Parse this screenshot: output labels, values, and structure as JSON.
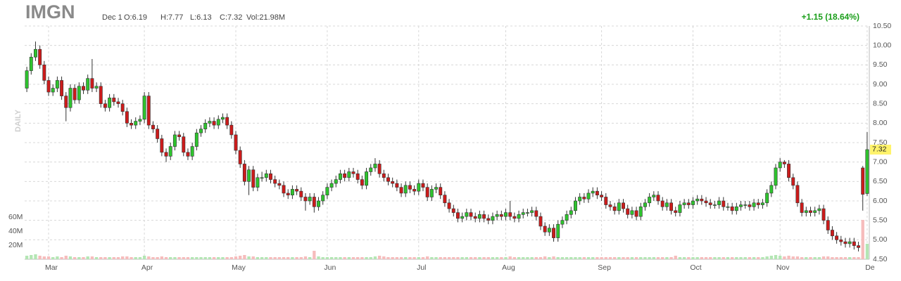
{
  "chart_data": {
    "type": "candlestick",
    "title": "IMGN",
    "date": "Dec 1",
    "open_text": "O:6.19",
    "high_text": "H:7.77",
    "low_text": "L:6.13",
    "close_text": "C:7.32",
    "volume_text": "Vol:21.98M",
    "change_text": "+1.15 (18.64%)",
    "period_label": "DAILY",
    "last_price": {
      "value": 7.32,
      "label": "7.32"
    },
    "up_color": "#2ec42e",
    "down_color": "#cc1b1b",
    "volume_up_color": "#b4e6b4",
    "volume_down_color": "#f6bcbc",
    "grid": true,
    "ylim": [
      4.5,
      10.5
    ],
    "yticks": [
      {
        "value": 4.5,
        "label": "4.50"
      },
      {
        "value": 5,
        "label": "5.00"
      },
      {
        "value": 5.5,
        "label": "5.50"
      },
      {
        "value": 6,
        "label": "6.00"
      },
      {
        "value": 6.5,
        "label": "6.50"
      },
      {
        "value": 7,
        "label": "7.00"
      },
      {
        "value": 7.5,
        "label": "7.50"
      },
      {
        "value": 8,
        "label": "8.00"
      },
      {
        "value": 8.5,
        "label": "8.50"
      },
      {
        "value": 9,
        "label": "9.00"
      },
      {
        "value": 9.5,
        "label": "9.50"
      },
      {
        "value": 10,
        "label": "10.00"
      },
      {
        "value": 10.5,
        "label": "10.50"
      }
    ],
    "y2lim": [
      0,
      332
    ],
    "y2ticks": [
      {
        "value": 20,
        "label": "20M"
      },
      {
        "value": 40,
        "label": "40M"
      },
      {
        "value": 60,
        "label": "60M"
      }
    ],
    "categories": [
      null,
      null,
      null,
      null,
      null,
      "Mar",
      null,
      null,
      null,
      null,
      null,
      null,
      null,
      null,
      null,
      null,
      null,
      null,
      null,
      null,
      null,
      null,
      null,
      null,
      null,
      null,
      null,
      "Apr",
      null,
      null,
      null,
      null,
      null,
      null,
      null,
      null,
      null,
      null,
      null,
      null,
      null,
      null,
      null,
      null,
      null,
      null,
      null,
      null,
      "May",
      null,
      null,
      null,
      null,
      null,
      null,
      null,
      null,
      null,
      null,
      null,
      null,
      null,
      null,
      null,
      null,
      null,
      null,
      null,
      null,
      "Jun",
      null,
      null,
      null,
      null,
      null,
      null,
      null,
      null,
      null,
      null,
      null,
      null,
      null,
      null,
      null,
      null,
      null,
      null,
      null,
      null,
      "Jul",
      null,
      null,
      null,
      null,
      null,
      null,
      null,
      null,
      null,
      null,
      null,
      null,
      null,
      null,
      null,
      null,
      null,
      null,
      null,
      "Aug",
      null,
      null,
      null,
      null,
      null,
      null,
      null,
      null,
      null,
      null,
      null,
      null,
      null,
      null,
      null,
      null,
      null,
      null,
      null,
      null,
      null,
      "Sep",
      null,
      null,
      null,
      null,
      null,
      null,
      null,
      null,
      null,
      null,
      null,
      null,
      null,
      null,
      null,
      null,
      null,
      null,
      null,
      null,
      "Oct",
      null,
      null,
      null,
      null,
      null,
      null,
      null,
      null,
      null,
      null,
      null,
      null,
      null,
      null,
      null,
      null,
      null,
      null,
      null,
      "Nov",
      null,
      null,
      null,
      null,
      null,
      null,
      null,
      null,
      null,
      null,
      null,
      null,
      null,
      null,
      null,
      null,
      null,
      null,
      null,
      "De"
    ],
    "open": [
      8.9,
      9.35,
      9.7,
      9.9,
      9.5,
      9.1,
      8.8,
      8.9,
      9.1,
      8.7,
      8.4,
      8.9,
      8.6,
      8.95,
      8.85,
      9.15,
      8.9,
      8.95,
      8.5,
      8.4,
      8.65,
      8.55,
      8.5,
      8.3,
      8.0,
      7.95,
      8.05,
      8.1,
      8.7,
      7.95,
      7.85,
      7.6,
      7.25,
      7.15,
      7.4,
      7.7,
      7.65,
      7.25,
      7.15,
      7.4,
      7.75,
      7.85,
      8.0,
      8.05,
      7.95,
      8.1,
      8.15,
      7.95,
      7.7,
      7.3,
      6.95,
      6.5,
      6.8,
      6.35,
      6.6,
      6.6,
      6.7,
      6.55,
      6.45,
      6.4,
      6.2,
      6.15,
      6.3,
      6.25,
      6.1,
      6.0,
      6.1,
      5.85,
      6.0,
      6.15,
      6.35,
      6.45,
      6.55,
      6.7,
      6.6,
      6.75,
      6.7,
      6.55,
      6.4,
      6.75,
      6.85,
      6.95,
      6.7,
      6.6,
      6.5,
      6.45,
      6.35,
      6.2,
      6.4,
      6.3,
      6.25,
      6.45,
      6.35,
      6.1,
      6.3,
      6.35,
      6.15,
      5.95,
      5.8,
      5.7,
      5.55,
      5.6,
      5.7,
      5.6,
      5.55,
      5.65,
      5.55,
      5.5,
      5.6,
      5.65,
      5.6,
      5.7,
      5.6,
      5.55,
      5.65,
      5.7,
      5.7,
      5.75,
      5.6,
      5.35,
      5.2,
      5.3,
      5.05,
      5.4,
      5.5,
      5.65,
      5.75,
      6.0,
      6.1,
      6.05,
      6.2,
      6.25,
      6.15,
      6.1,
      5.9,
      5.85,
      5.75,
      5.95,
      5.8,
      5.65,
      5.75,
      5.6,
      5.85,
      5.95,
      6.1,
      6.15,
      6.0,
      5.85,
      5.95,
      5.75,
      5.7,
      5.9,
      5.95,
      5.9,
      6.0,
      6.05,
      6.0,
      5.95,
      5.9,
      5.9,
      6.0,
      5.85,
      5.85,
      5.75,
      5.85,
      5.9,
      5.9,
      5.85,
      5.95,
      5.9,
      5.95,
      6.2,
      6.4,
      6.85,
      7.0,
      6.95,
      6.6,
      6.4,
      5.95,
      5.7,
      5.75,
      5.7,
      5.75,
      5.8,
      5.5,
      5.25,
      5.1,
      5.0,
      4.95,
      4.9,
      4.95,
      4.85,
      6.85,
      6.19
    ],
    "high": [
      9.45,
      9.8,
      10.1,
      10.0,
      9.6,
      9.2,
      9.0,
      9.2,
      9.2,
      8.8,
      9.0,
      9.0,
      9.05,
      9.05,
      9.25,
      9.65,
      9.05,
      9.05,
      8.6,
      8.75,
      8.75,
      8.65,
      8.6,
      8.4,
      8.1,
      8.15,
      8.2,
      8.8,
      8.8,
      8.05,
      7.95,
      7.7,
      7.35,
      7.5,
      7.8,
      7.8,
      7.75,
      7.35,
      7.5,
      7.85,
      7.95,
      8.1,
      8.15,
      8.15,
      8.2,
      8.25,
      8.25,
      8.05,
      7.8,
      7.4,
      7.05,
      6.9,
      6.9,
      6.7,
      6.75,
      6.8,
      6.8,
      6.65,
      6.55,
      6.5,
      6.3,
      6.4,
      6.4,
      6.35,
      6.2,
      6.2,
      6.2,
      6.1,
      6.25,
      6.45,
      6.55,
      6.65,
      6.8,
      6.8,
      6.85,
      6.85,
      6.8,
      6.65,
      6.85,
      6.95,
      7.1,
      7.05,
      6.8,
      6.7,
      6.6,
      6.55,
      6.45,
      6.5,
      6.5,
      6.4,
      6.55,
      6.55,
      6.45,
      6.4,
      6.45,
      6.45,
      6.25,
      6.05,
      5.9,
      5.8,
      5.7,
      5.8,
      5.8,
      5.7,
      5.75,
      5.75,
      5.65,
      5.7,
      5.75,
      5.75,
      5.8,
      6.0,
      5.7,
      5.75,
      5.8,
      5.8,
      5.85,
      5.85,
      5.7,
      5.45,
      5.4,
      5.4,
      5.5,
      5.6,
      5.75,
      5.85,
      6.1,
      6.2,
      6.2,
      6.3,
      6.35,
      6.35,
      6.25,
      6.2,
      6.0,
      5.95,
      6.05,
      6.05,
      5.9,
      5.85,
      5.85,
      5.95,
      6.05,
      6.2,
      6.25,
      6.25,
      6.1,
      6.05,
      6.05,
      5.85,
      6.0,
      6.05,
      6.05,
      6.1,
      6.15,
      6.15,
      6.1,
      6.05,
      6.0,
      6.1,
      6.1,
      5.95,
      5.95,
      5.95,
      6.0,
      6.0,
      6.0,
      6.05,
      6.05,
      6.05,
      6.3,
      6.5,
      6.95,
      7.1,
      7.05,
      7.05,
      6.7,
      6.5,
      6.05,
      5.85,
      5.85,
      5.85,
      5.9,
      5.9,
      5.6,
      5.35,
      5.2,
      5.1,
      5.05,
      5.05,
      5.05,
      4.95,
      6.9,
      7.77
    ],
    "low": [
      8.8,
      9.25,
      9.6,
      9.4,
      9.0,
      8.7,
      8.7,
      8.8,
      8.6,
      8.05,
      8.3,
      8.5,
      8.5,
      8.75,
      8.75,
      8.8,
      8.8,
      8.4,
      8.3,
      8.3,
      8.45,
      8.4,
      8.2,
      7.9,
      7.85,
      7.85,
      7.95,
      8.0,
      7.85,
      7.75,
      7.5,
      7.15,
      7.0,
      7.05,
      7.3,
      7.55,
      7.15,
      7.05,
      7.05,
      7.3,
      7.65,
      7.75,
      7.9,
      7.85,
      7.85,
      8.0,
      7.85,
      7.6,
      7.2,
      6.85,
      6.4,
      6.15,
      6.25,
      6.25,
      6.5,
      6.5,
      6.45,
      6.35,
      6.3,
      6.1,
      6.05,
      6.05,
      6.15,
      6.0,
      5.75,
      5.9,
      5.7,
      5.75,
      5.9,
      6.05,
      6.25,
      6.35,
      6.45,
      6.5,
      6.5,
      6.6,
      6.45,
      6.3,
      6.3,
      6.65,
      6.75,
      6.6,
      6.5,
      6.4,
      6.35,
      6.25,
      6.1,
      6.1,
      6.2,
      6.15,
      6.15,
      6.25,
      6.0,
      6.0,
      6.2,
      6.05,
      5.85,
      5.7,
      5.6,
      5.45,
      5.45,
      5.5,
      5.5,
      5.45,
      5.45,
      5.45,
      5.4,
      5.4,
      5.5,
      5.5,
      5.5,
      5.5,
      5.45,
      5.45,
      5.55,
      5.6,
      5.6,
      5.5,
      5.25,
      5.1,
      5.1,
      4.95,
      4.95,
      5.3,
      5.4,
      5.55,
      5.65,
      5.9,
      5.95,
      5.95,
      6.1,
      6.05,
      6.0,
      5.8,
      5.75,
      5.65,
      5.65,
      5.7,
      5.55,
      5.55,
      5.5,
      5.5,
      5.75,
      5.85,
      6.0,
      5.9,
      5.75,
      5.75,
      5.65,
      5.6,
      5.6,
      5.8,
      5.8,
      5.8,
      5.9,
      5.9,
      5.85,
      5.8,
      5.8,
      5.8,
      5.75,
      5.75,
      5.65,
      5.65,
      5.75,
      5.8,
      5.75,
      5.75,
      5.8,
      5.8,
      5.85,
      6.1,
      6.3,
      6.75,
      6.85,
      6.5,
      6.3,
      5.85,
      5.6,
      5.6,
      5.6,
      5.6,
      5.65,
      5.4,
      5.15,
      5.0,
      4.9,
      4.85,
      4.8,
      4.8,
      4.75,
      4.7,
      5.75,
      6.13
    ],
    "close": [
      9.35,
      9.7,
      9.9,
      9.5,
      9.1,
      8.8,
      8.9,
      9.1,
      8.7,
      8.4,
      8.9,
      8.6,
      8.95,
      8.85,
      9.15,
      8.9,
      8.95,
      8.5,
      8.4,
      8.65,
      8.55,
      8.5,
      8.3,
      8.0,
      7.95,
      8.05,
      8.1,
      8.7,
      7.95,
      7.85,
      7.6,
      7.25,
      7.15,
      7.4,
      7.7,
      7.65,
      7.25,
      7.15,
      7.4,
      7.75,
      7.85,
      8.0,
      8.05,
      7.95,
      8.1,
      8.15,
      7.95,
      7.7,
      7.3,
      6.95,
      6.5,
      6.8,
      6.35,
      6.6,
      6.6,
      6.7,
      6.55,
      6.45,
      6.4,
      6.2,
      6.15,
      6.3,
      6.25,
      6.1,
      6.0,
      6.1,
      5.85,
      6.0,
      6.15,
      6.35,
      6.45,
      6.55,
      6.7,
      6.6,
      6.75,
      6.7,
      6.55,
      6.4,
      6.75,
      6.85,
      6.95,
      6.7,
      6.6,
      6.5,
      6.45,
      6.35,
      6.2,
      6.4,
      6.3,
      6.25,
      6.45,
      6.35,
      6.1,
      6.3,
      6.35,
      6.15,
      5.95,
      5.8,
      5.7,
      5.55,
      5.6,
      5.7,
      5.6,
      5.55,
      5.65,
      5.55,
      5.5,
      5.6,
      5.65,
      5.6,
      5.7,
      5.6,
      5.55,
      5.65,
      5.7,
      5.7,
      5.75,
      5.6,
      5.35,
      5.2,
      5.3,
      5.05,
      5.4,
      5.5,
      5.65,
      5.75,
      6.0,
      6.1,
      6.05,
      6.2,
      6.25,
      6.15,
      6.1,
      5.9,
      5.85,
      5.75,
      5.95,
      5.8,
      5.65,
      5.75,
      5.6,
      5.85,
      5.95,
      6.1,
      6.15,
      6.0,
      5.85,
      5.95,
      5.75,
      5.7,
      5.9,
      5.95,
      5.9,
      6.0,
      6.05,
      6.0,
      5.95,
      5.9,
      5.9,
      6.0,
      5.85,
      5.85,
      5.75,
      5.85,
      5.9,
      5.9,
      5.85,
      5.95,
      5.9,
      5.95,
      6.2,
      6.4,
      6.85,
      7.0,
      6.95,
      6.6,
      6.4,
      5.95,
      5.7,
      5.75,
      5.7,
      5.75,
      5.8,
      5.5,
      5.25,
      5.1,
      5.0,
      4.95,
      4.9,
      4.95,
      4.85,
      4.8,
      6.17,
      7.32
    ],
    "volume": [
      5,
      6,
      7,
      5,
      4,
      4,
      3,
      4,
      3,
      5,
      4,
      3,
      3,
      3,
      4,
      4,
      3,
      3,
      3,
      3,
      3,
      3,
      4,
      4,
      3,
      3,
      3,
      5,
      4,
      3,
      3,
      4,
      3,
      3,
      3,
      3,
      3,
      3,
      3,
      3,
      3,
      3,
      3,
      3,
      3,
      3,
      3,
      3,
      4,
      5,
      6,
      4,
      4,
      3,
      3,
      3,
      3,
      3,
      3,
      3,
      3,
      3,
      3,
      3,
      4,
      3,
      12,
      4,
      3,
      3,
      3,
      3,
      3,
      3,
      3,
      3,
      3,
      3,
      3,
      3,
      4,
      5,
      4,
      3,
      3,
      3,
      3,
      3,
      3,
      3,
      3,
      3,
      4,
      3,
      3,
      3,
      3,
      3,
      3,
      3,
      3,
      3,
      3,
      3,
      3,
      3,
      3,
      3,
      3,
      3,
      3,
      4,
      3,
      3,
      3,
      3,
      3,
      3,
      3,
      4,
      3,
      4,
      3,
      3,
      3,
      3,
      3,
      3,
      3,
      3,
      3,
      3,
      3,
      3,
      3,
      3,
      3,
      3,
      3,
      3,
      3,
      3,
      3,
      3,
      3,
      3,
      3,
      3,
      3,
      5,
      3,
      3,
      3,
      3,
      3,
      3,
      3,
      3,
      3,
      3,
      3,
      3,
      3,
      3,
      3,
      3,
      3,
      3,
      3,
      3,
      4,
      5,
      6,
      5,
      4,
      5,
      4,
      4,
      3,
      3,
      3,
      3,
      3,
      4,
      4,
      3,
      3,
      3,
      3,
      3,
      3,
      3,
      56,
      21.98
    ]
  }
}
